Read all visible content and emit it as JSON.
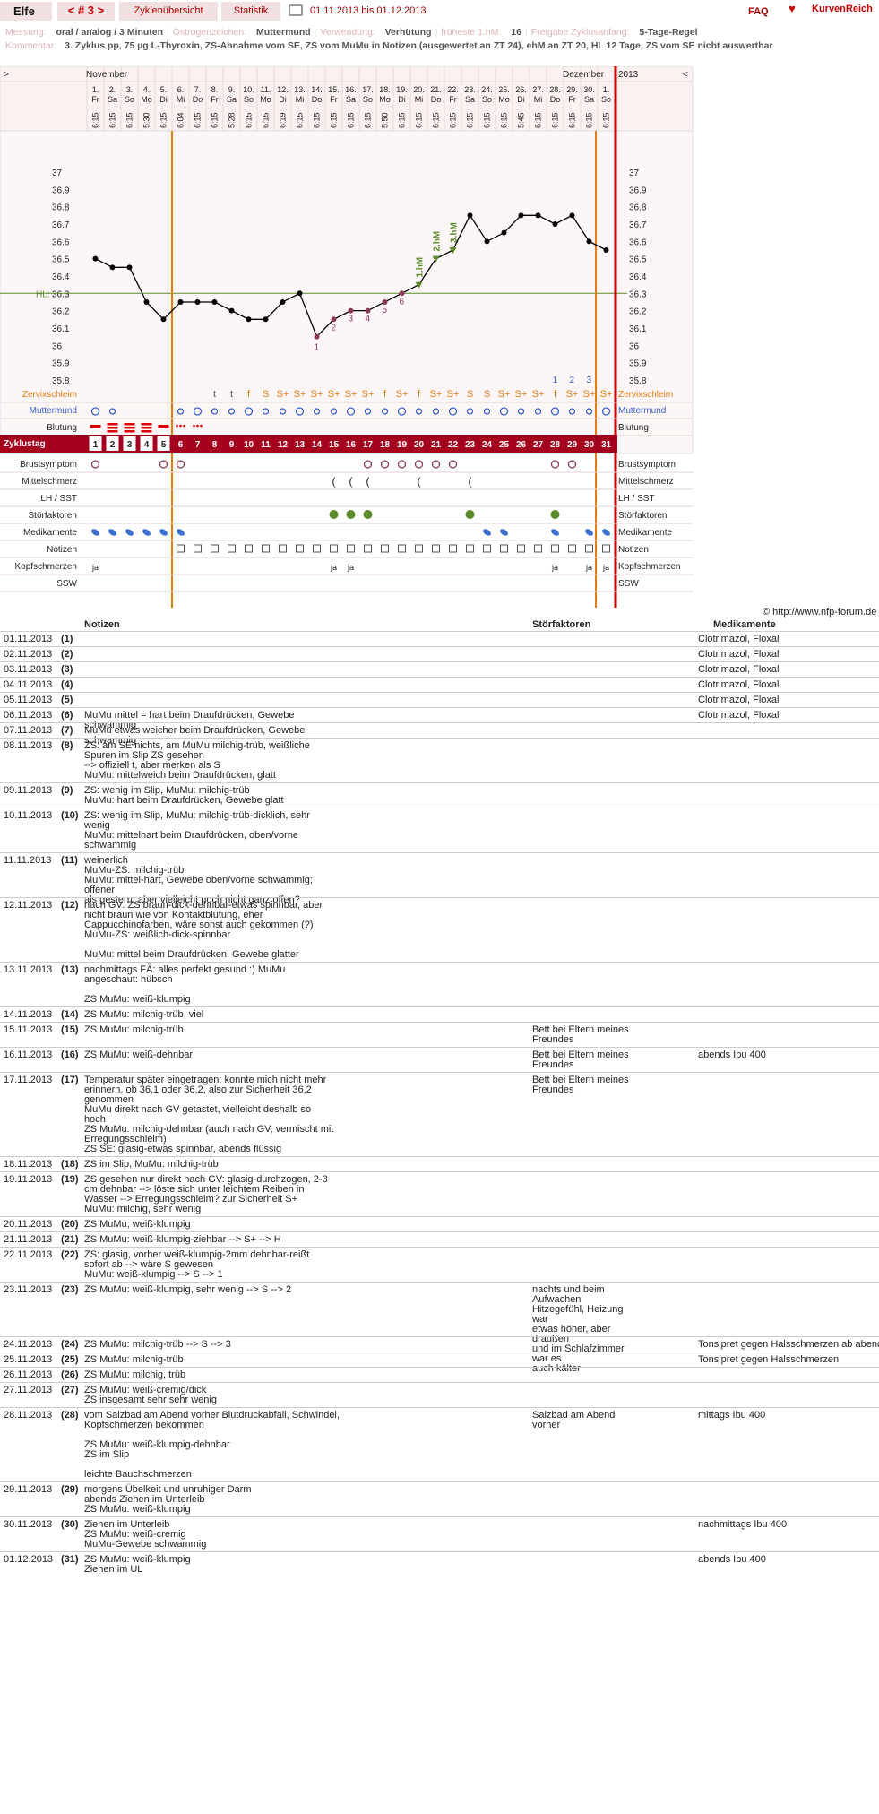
{
  "header": {
    "user": "Elfe",
    "cycle_nav": "< # 3 >",
    "tab_overview": "Zyklenübersicht",
    "tab_stats": "Statistik",
    "date_range": "01.11.2013 bis 01.12.2013",
    "faq": "FAQ",
    "brand": "KurvenReich"
  },
  "meta1": [
    {
      "k": "Messung:",
      "v": "oral / analog / 3 Minuten"
    },
    {
      "k": "Östrogenzeichen:",
      "v": "Muttermund"
    },
    {
      "k": "Verwendung:",
      "v": "Verhütung"
    },
    {
      "k": "früheste 1.hM:",
      "v": "16"
    },
    {
      "k": "Freigabe Zyklusanfang:",
      "v": "5-Tage-Regel"
    }
  ],
  "comment": {
    "k": "Kommentar:",
    "v": "3. Zyklus pp, 75 µg L-Thyroxin, ZS-Abnahme vom SE, ZS vom MuMu in Notizen (ausgewertet an ZT 24), ehM an ZT 20, HL 12 Tage, ZS vom SE nicht auswertbar"
  },
  "chart_data": {
    "type": "line",
    "title": "",
    "month_left": "November",
    "month_right": "Dezember",
    "year": "2013",
    "nav_prev": ">",
    "nav_next": "<",
    "days": [
      "1.",
      "2.",
      "3.",
      "4.",
      "5.",
      "6.",
      "7.",
      "8.",
      "9.",
      "10.",
      "11.",
      "12.",
      "13.",
      "14.",
      "15.",
      "16.",
      "17.",
      "18.",
      "19.",
      "20.",
      "21.",
      "22.",
      "23.",
      "24.",
      "25.",
      "26.",
      "27.",
      "28.",
      "29.",
      "30.",
      "1."
    ],
    "weekdays": [
      "Fr",
      "Sa",
      "So",
      "Mo",
      "Di",
      "Mi",
      "Do",
      "Fr",
      "Sa",
      "So",
      "Mo",
      "Di",
      "Mi",
      "Do",
      "Fr",
      "Sa",
      "So",
      "Mo",
      "Di",
      "Mi",
      "Do",
      "Fr",
      "Sa",
      "So",
      "Mo",
      "Di",
      "Mi",
      "Do",
      "Fr",
      "Sa",
      "So"
    ],
    "times": [
      "6:15",
      "6:15",
      "6:15",
      "5:30",
      "6:15",
      "6:04",
      "6:15",
      "6:15",
      "5:28",
      "6:15",
      "6:15",
      "6:19",
      "6:15",
      "6:15",
      "6:15",
      "6:15",
      "6:15",
      "5:50",
      "6:15",
      "6:15",
      "6:15",
      "6:15",
      "6:15",
      "6:15",
      "6:15",
      "5:45",
      "6:15",
      "6:15",
      "6:15",
      "6:15",
      "6:15"
    ],
    "temperatures": [
      36.5,
      36.45,
      36.45,
      36.25,
      36.15,
      36.25,
      36.25,
      36.25,
      36.2,
      36.15,
      36.15,
      36.25,
      36.3,
      36.05,
      36.15,
      36.2,
      36.2,
      36.25,
      36.3,
      36.35,
      36.5,
      36.55,
      36.75,
      36.6,
      36.65,
      36.75,
      36.75,
      36.7,
      36.75,
      36.6,
      36.55
    ],
    "y_ticks": [
      "37",
      "36.9",
      "36.8",
      "36.7",
      "36.6",
      "36.5",
      "36.4",
      "36.3",
      "36.2",
      "36.1",
      "36",
      "35.9",
      "35.8"
    ],
    "ylim": [
      35.7,
      37.05
    ],
    "coverline_label": "HL:",
    "coverline": 36.3,
    "low_labels": [
      {
        "day": 14,
        "label": "1"
      },
      {
        "day": 15,
        "label": "2"
      },
      {
        "day": 16,
        "label": "3"
      },
      {
        "day": 17,
        "label": "4"
      },
      {
        "day": 18,
        "label": "5"
      },
      {
        "day": 19,
        "label": "6"
      }
    ],
    "high_labels": [
      {
        "day": 20,
        "label": "1.hM"
      },
      {
        "day": 21,
        "label": "2.hM"
      },
      {
        "day": 22,
        "label": "3.hM"
      }
    ],
    "count_labels": [
      {
        "day": 28,
        "label": "1"
      },
      {
        "day": 29,
        "label": "2"
      },
      {
        "day": 30,
        "label": "3"
      }
    ],
    "cervical_mucus": [
      "",
      "",
      "",
      "",
      "",
      "",
      "",
      "t",
      "t",
      "f",
      "S",
      "S+",
      "S+",
      "S+",
      "S+",
      "S+",
      "S+",
      "f",
      "S+",
      "f",
      "S+",
      "S+",
      "S",
      "S",
      "S+",
      "S+",
      "S+",
      "f",
      "S+",
      "S+",
      "S+"
    ],
    "bleeding": [
      "heavy",
      "very",
      "very",
      "very",
      "heavy",
      "spot",
      "spot",
      "",
      "",
      "",
      "",
      "",
      "",
      "",
      "",
      "",
      "",
      "",
      "",
      "",
      "",
      "",
      "",
      "",
      "",
      "",
      "",
      "",
      "",
      "",
      ""
    ],
    "cycle_days": [
      "1",
      "2",
      "3",
      "4",
      "5",
      "6",
      "7",
      "8",
      "9",
      "10",
      "11",
      "12",
      "13",
      "14",
      "15",
      "16",
      "17",
      "18",
      "19",
      "20",
      "21",
      "22",
      "23",
      "24",
      "25",
      "26",
      "27",
      "28",
      "29",
      "30",
      "31"
    ],
    "headache": [
      "ja",
      "",
      "",
      "",
      "",
      "",
      "",
      "",
      "",
      "",
      "",
      "",
      "",
      "",
      "ja",
      "ja",
      "",
      "",
      "",
      "",
      "",
      "",
      "",
      "",
      "",
      "",
      "",
      "ja",
      "",
      "ja",
      "ja"
    ],
    "rows": {
      "mucus": "Zervixschleim",
      "cervix": "Muttermund",
      "bleeding": "Blutung",
      "cycleday": "Zyklustag",
      "breast": "Brustsymptom",
      "midpain": "Mittelschmerz",
      "lh": "LH / SST",
      "disturb": "Störfaktoren",
      "meds": "Medikamente",
      "notes": "Notizen",
      "headache": "Kopfschmerzen",
      "ssw": "SSW"
    }
  },
  "credit": "© http://www.nfp-forum.de",
  "notes_table": {
    "col_notes": "Notizen",
    "col_disturb": "Störfaktoren",
    "col_meds": "Medikamente",
    "rows": [
      {
        "date": "01.11.2013",
        "zt": "(1)",
        "note": "",
        "dist": "",
        "med": "Clotrimazol, Floxal"
      },
      {
        "date": "02.11.2013",
        "zt": "(2)",
        "note": "",
        "dist": "",
        "med": "Clotrimazol, Floxal"
      },
      {
        "date": "03.11.2013",
        "zt": "(3)",
        "note": "",
        "dist": "",
        "med": "Clotrimazol, Floxal"
      },
      {
        "date": "04.11.2013",
        "zt": "(4)",
        "note": "",
        "dist": "",
        "med": "Clotrimazol, Floxal"
      },
      {
        "date": "05.11.2013",
        "zt": "(5)",
        "note": "",
        "dist": "",
        "med": "Clotrimazol, Floxal"
      },
      {
        "date": "06.11.2013",
        "zt": "(6)",
        "note": "MuMu mittel = hart beim Draufdrücken, Gewebe schwammig",
        "dist": "",
        "med": "Clotrimazol, Floxal"
      },
      {
        "date": "07.11.2013",
        "zt": "(7)",
        "note": "MuMu etwas weicher beim Draufdrücken, Gewebe schwammig",
        "dist": "",
        "med": ""
      },
      {
        "date": "08.11.2013",
        "zt": "(8)",
        "note": "ZS: am SE nichts, am MuMu milchig-trüb, weißliche\nSpuren im Slip ZS gesehen\n--> offiziell t, aber merken als S\nMuMu: mittelweich beim Draufdrücken, glatt",
        "dist": "",
        "med": ""
      },
      {
        "date": "09.11.2013",
        "zt": "(9)",
        "note": "ZS: wenig im Slip, MuMu: milchig-trüb\nMuMu: hart beim Draufdrücken, Gewebe glatt",
        "dist": "",
        "med": ""
      },
      {
        "date": "10.11.2013",
        "zt": "(10)",
        "note": "ZS: wenig im Slip, MuMu: milchig-trüb-dicklich, sehr\nwenig\nMuMu: mittelhart beim Draufdrücken, oben/vorne\nschwammig",
        "dist": "",
        "med": ""
      },
      {
        "date": "11.11.2013",
        "zt": "(11)",
        "note": "weinerlich\nMuMu-ZS: milchig-trüb\nMuMu: mittel-hart, Gewebe oben/vorne schwammig; offener\nals gestern, aber vielleicht noch nicht ganz offen?",
        "dist": "",
        "med": ""
      },
      {
        "date": "12.11.2013",
        "zt": "(12)",
        "note": "nach GV: ZS braun-dick-dehnbar-etwas spinnbar, aber\nnicht braun wie von Kontaktblutung, eher\nCappucchinofarben, wäre sonst auch gekommen (?)\nMuMu-ZS: weißlich-dick-spinnbar\n\nMuMu: mittel beim Draufdrücken, Gewebe glatter",
        "dist": "",
        "med": ""
      },
      {
        "date": "13.11.2013",
        "zt": "(13)",
        "note": "nachmittags FÄ: alles perfekt gesund :) MuMu\nangeschaut: hübsch\n\nZS MuMu: weiß-klumpig",
        "dist": "",
        "med": ""
      },
      {
        "date": "14.11.2013",
        "zt": "(14)",
        "note": "ZS MuMu: milchig-trüb, viel",
        "dist": "",
        "med": ""
      },
      {
        "date": "15.11.2013",
        "zt": "(15)",
        "note": "ZS MuMu: milchig-trüb",
        "dist": "Bett bei Eltern meines\nFreundes",
        "med": ""
      },
      {
        "date": "16.11.2013",
        "zt": "(16)",
        "note": "ZS MuMu: weiß-dehnbar",
        "dist": "Bett bei Eltern meines\nFreundes",
        "med": "abends Ibu 400"
      },
      {
        "date": "17.11.2013",
        "zt": "(17)",
        "note": "Temperatur später eingetragen: konnte mich nicht mehr\nerinnern, ob 36,1 oder 36,2, also zur Sicherheit 36,2\ngenommen\nMuMu direkt nach GV getastet, vielleicht deshalb so\nhoch\nZS MuMu: milchig-dehnbar (auch nach GV, vermischt mit\nErregungsschleim)\nZS SE: glasig-etwas spinnbar, abends flüssig",
        "dist": "Bett bei Eltern meines\nFreundes",
        "med": ""
      },
      {
        "date": "18.11.2013",
        "zt": "(18)",
        "note": "ZS im Slip, MuMu: milchig-trüb",
        "dist": "",
        "med": ""
      },
      {
        "date": "19.11.2013",
        "zt": "(19)",
        "note": "ZS gesehen nur direkt nach GV: glasig-durchzogen, 2-3\ncm dehnbar --> löste sich unter leichtem Reiben in\nWasser --> Erregungsschleim? zur Sicherheit S+\nMuMu: milchig, sehr wenig",
        "dist": "",
        "med": ""
      },
      {
        "date": "20.11.2013",
        "zt": "(20)",
        "note": "ZS MuMu; weiß-klumpig",
        "dist": "",
        "med": ""
      },
      {
        "date": "21.11.2013",
        "zt": "(21)",
        "note": "ZS MuMu: weiß-klumpig-ziehbar --> S+ --> H",
        "dist": "",
        "med": ""
      },
      {
        "date": "22.11.2013",
        "zt": "(22)",
        "note": "ZS: glasig, vorher weiß-klumpig-2mm dehnbar-reißt\nsofort ab --> wäre S gewesen\nMuMu: weiß-klumpig --> S --> 1",
        "dist": "",
        "med": ""
      },
      {
        "date": "23.11.2013",
        "zt": "(23)",
        "note": "ZS MuMu: weiß-klumpig, sehr wenig --> S --> 2",
        "dist": "nachts und beim Aufwachen\nHitzegefühl, Heizung war\netwas höher, aber draußen\nund im Schlafzimmer war es\nauch kälter",
        "med": ""
      },
      {
        "date": "24.11.2013",
        "zt": "(24)",
        "note": "ZS MuMu: milchig-trüb --> S --> 3",
        "dist": "",
        "med": "Tonsipret gegen Halsschmerzen ab abends"
      },
      {
        "date": "25.11.2013",
        "zt": "(25)",
        "note": "ZS MuMu: milchig-trüb",
        "dist": "",
        "med": "Tonsipret gegen Halsschmerzen"
      },
      {
        "date": "26.11.2013",
        "zt": "(26)",
        "note": "ZS MuMu: milchig, trüb",
        "dist": "",
        "med": ""
      },
      {
        "date": "27.11.2013",
        "zt": "(27)",
        "note": "ZS MuMu: weiß-cremig/dick\nZS insgesamt sehr sehr wenig",
        "dist": "",
        "med": ""
      },
      {
        "date": "28.11.2013",
        "zt": "(28)",
        "note": "vom Salzbad am Abend vorher Blutdruckabfall, Schwindel,\nKopfschmerzen bekommen\n\nZS MuMu: weiß-klumpig-dehnbar\nZS im Slip\n\nleichte Bauchschmerzen",
        "dist": "Salzbad am Abend vorher",
        "med": "mittags Ibu 400"
      },
      {
        "date": "29.11.2013",
        "zt": "(29)",
        "note": "morgens Übelkeit und unruhiger Darm\nabends Ziehen im Unterleib\nZS MuMu: weiß-klumpig",
        "dist": "",
        "med": ""
      },
      {
        "date": "30.11.2013",
        "zt": "(30)",
        "note": "Ziehen im Unterleib\nZS MuMu: weiß-cremig\nMuMu-Gewebe schwammig",
        "dist": "",
        "med": "nachmittags Ibu 400"
      },
      {
        "date": "01.12.2013",
        "zt": "(31)",
        "note": "ZS MuMu: weiß-klumpig\nZiehen im UL",
        "dist": "",
        "med": "abends Ibu 400"
      }
    ]
  },
  "colors": {
    "accent": "#a4001d",
    "orange": "#e87a10",
    "blue": "#3b5fcc",
    "green": "#5a8a2a",
    "temp_line": "#000",
    "gridbg": "#fbf1f1"
  }
}
